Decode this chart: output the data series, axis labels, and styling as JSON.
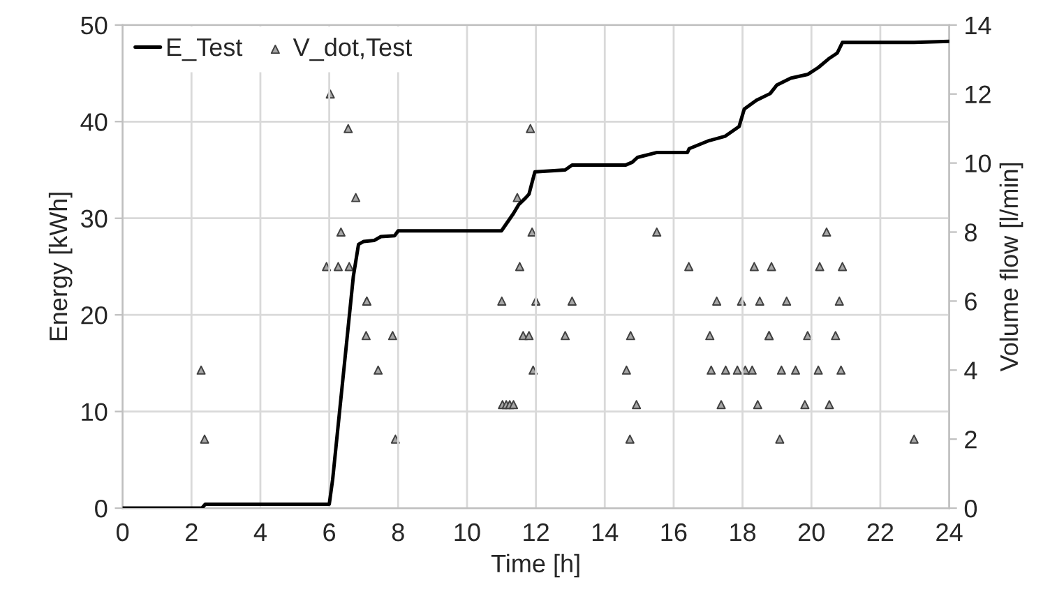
{
  "chart_data": {
    "type": "line",
    "xlabel": "Time [h]",
    "ylabel": "Energy [kWh]",
    "y2label": "Volume flow [l/min]",
    "xlim": [
      0,
      24
    ],
    "xticks": [
      0,
      2,
      4,
      6,
      8,
      10,
      12,
      14,
      16,
      18,
      20,
      22,
      24
    ],
    "ylim": [
      0,
      50
    ],
    "yticks": [
      0,
      10,
      20,
      30,
      40,
      50
    ],
    "y2lim": [
      0,
      14
    ],
    "y2ticks": [
      0,
      2,
      4,
      6,
      8,
      10,
      12,
      14
    ],
    "grid": true,
    "legend": "top left",
    "series": [
      {
        "name": "E_Test",
        "color": "#000000",
        "marker": "none",
        "line_style": "solid",
        "x": [
          0,
          2.3,
          2.4,
          6.0,
          6.1,
          6.3,
          6.5,
          6.7,
          6.85,
          7.0,
          7.3,
          7.5,
          7.9,
          8.0,
          11.0,
          11.35,
          11.5,
          11.7,
          11.8,
          11.97,
          12.85,
          13.05,
          14.6,
          14.8,
          14.95,
          15.5,
          16.4,
          16.45,
          17.0,
          17.5,
          17.9,
          18.05,
          18.4,
          18.8,
          19.0,
          19.4,
          19.9,
          20.2,
          20.5,
          20.75,
          20.9,
          22.98,
          24
        ],
        "values": [
          0,
          0,
          0.4,
          0.4,
          3,
          10,
          17,
          24,
          27.3,
          27.6,
          27.7,
          28.1,
          28.2,
          28.7,
          28.7,
          30.5,
          31.4,
          32.1,
          32.5,
          34.8,
          35.0,
          35.5,
          35.5,
          35.8,
          36.3,
          36.8,
          36.8,
          37.2,
          38.0,
          38.5,
          39.5,
          41.3,
          42.2,
          42.9,
          43.8,
          44.5,
          44.9,
          45.6,
          46.5,
          47.1,
          48.2,
          48.2,
          48.3
        ]
      },
      {
        "name": "V_dot,Test",
        "type": "scatter",
        "axis": "y2",
        "color": "#a6a6a6",
        "marker": "triangle",
        "x": [
          2.28,
          2.38,
          6.03,
          6.55,
          6.77,
          6.34,
          5.92,
          6.26,
          6.58,
          7.09,
          7.09,
          7.07,
          7.84,
          7.42,
          7.92,
          11.84,
          11.46,
          11.89,
          15.51,
          11.53,
          16.44,
          11.01,
          12.0,
          13.05,
          11.63,
          11.8,
          12.85,
          14.75,
          11.92,
          14.63,
          11.03,
          11.14,
          11.24,
          11.35,
          14.92,
          14.73,
          20.44,
          18.34,
          18.84,
          20.24,
          20.9,
          17.25,
          17.97,
          18.5,
          19.28,
          20.81,
          17.05,
          18.77,
          18.77,
          19.89,
          20.7,
          17.09,
          17.51,
          17.85,
          18.08,
          18.28,
          19.13,
          19.54,
          20.2,
          20.86,
          17.38,
          18.44,
          19.81,
          20.52,
          19.08,
          22.98
        ],
        "values": [
          4,
          2,
          12,
          11,
          9,
          8,
          7,
          7,
          7,
          6,
          6,
          5,
          5,
          4,
          2,
          11,
          9,
          8,
          8,
          7,
          7,
          6,
          6,
          6,
          5,
          5,
          5,
          5,
          4,
          4,
          3,
          3,
          3,
          3,
          3,
          2,
          8,
          7,
          7,
          7,
          7,
          6,
          6,
          6,
          6,
          6,
          5,
          5,
          5,
          5,
          5,
          4,
          4,
          4,
          4,
          4,
          4,
          4,
          4,
          4,
          3,
          3,
          3,
          3,
          2,
          2
        ]
      }
    ]
  }
}
